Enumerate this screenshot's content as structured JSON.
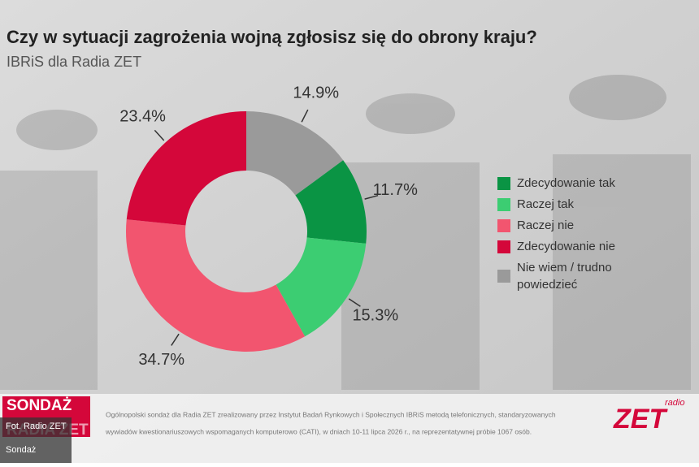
{
  "chart_data": {
    "type": "donut",
    "title": "Czy w sytuacji zagrożenia wojną zgłosisz się do obrony kraju?",
    "subtitle": "IBRiS dla Radia ZET",
    "series": [
      {
        "name": "Zdecydowanie tak",
        "color": "#0a9444",
        "values": [
          11.7
        ],
        "value_labels": [
          "11.7%"
        ]
      },
      {
        "name": "Raczej tak",
        "color": "#3ccd72",
        "values": [
          15.3
        ],
        "value_labels": [
          "15.3%"
        ]
      },
      {
        "name": "Raczej nie",
        "color": "#f2556f",
        "values": [
          34.7
        ],
        "value_labels": [
          "34.7%"
        ]
      },
      {
        "name": "Zdecydowanie nie",
        "color": "#d4073a",
        "values": [
          23.4
        ],
        "value_labels": [
          "23.4%"
        ]
      },
      {
        "name": "Nie wiem / trudno powiedzieć",
        "color": "#9a9a9a",
        "values": [
          14.9
        ],
        "value_labels": [
          "14.9%"
        ]
      }
    ],
    "legend": "right"
  },
  "footer": {
    "note_lines": [
      "Ogólnopolski sondaż dla Radia ZET zrealizowany przez Instytut Badań Rynkowych i Społecznych IBRiS metodą telefonicznych, standaryzowanych",
      "wywiadów kwestionariuszowych wspomaganych komputerowo (CATI), w dniach 10-11 lipca 2026 r., na reprezentatywnej próbie 1067 osób."
    ],
    "badge": [
      "SONDAŻ",
      "RADIA ZET"
    ],
    "photo_credit": "Fot. Radio ZET",
    "caption": "Sondaż",
    "logo_small": "radio",
    "logo": "ZET"
  }
}
